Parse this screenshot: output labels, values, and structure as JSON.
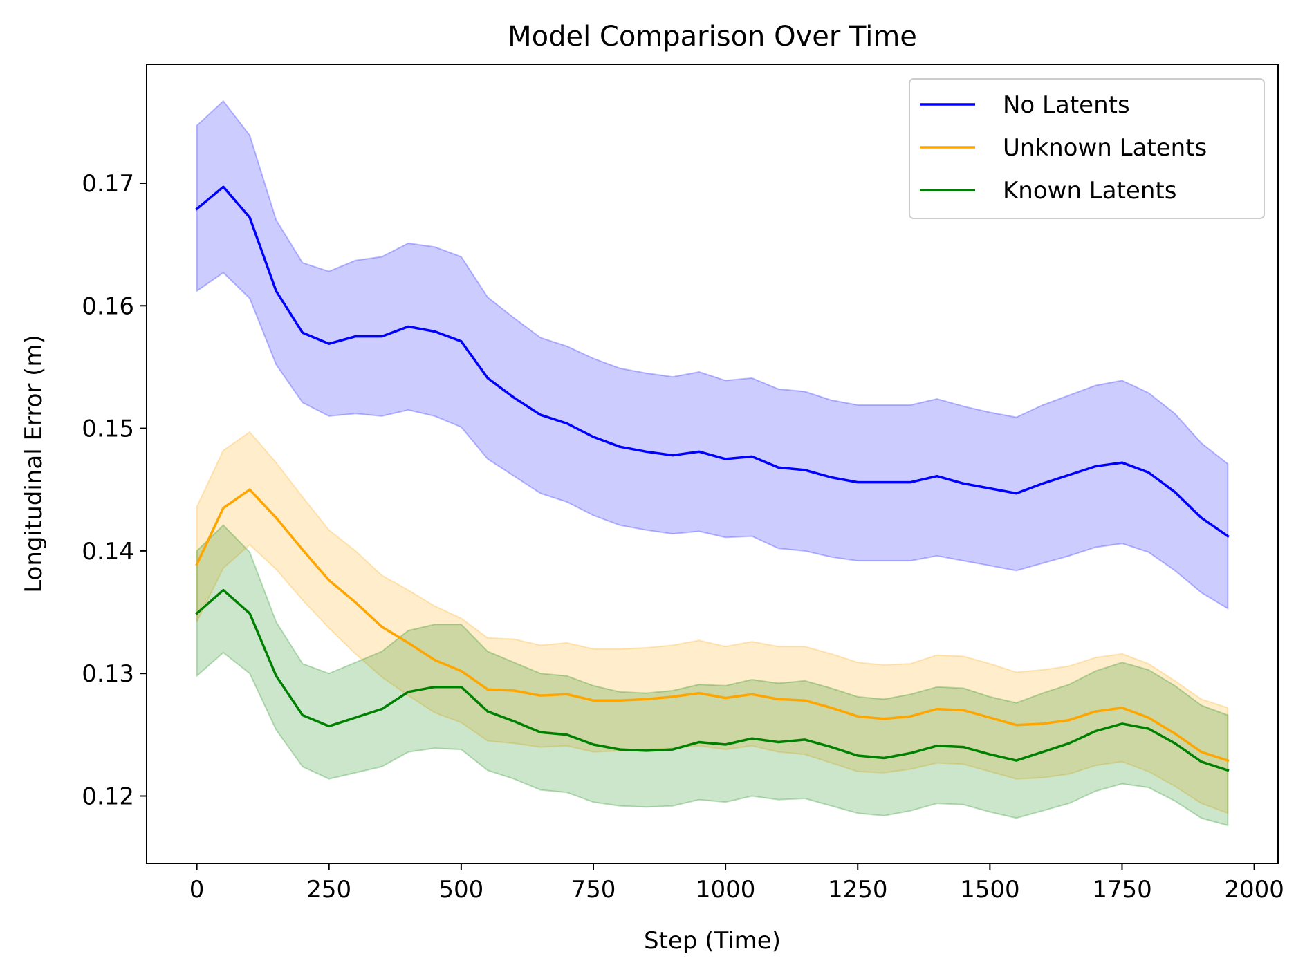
{
  "chart_data": {
    "type": "line",
    "title": "Model Comparison Over Time",
    "xlabel": "Step (Time)",
    "ylabel": "Longitudinal Error (m)",
    "xlim": [
      -95,
      2045
    ],
    "ylim": [
      0.1145,
      0.1797
    ],
    "xticks": [
      0,
      250,
      500,
      750,
      1000,
      1250,
      1500,
      1750,
      2000
    ],
    "xtick_labels": [
      "0",
      "250",
      "500",
      "750",
      "1000",
      "1250",
      "1500",
      "1750",
      "2000"
    ],
    "yticks": [
      0.12,
      0.13,
      0.14,
      0.15,
      0.16,
      0.17
    ],
    "ytick_labels": [
      "0.12",
      "0.13",
      "0.14",
      "0.15",
      "0.16",
      "0.17"
    ],
    "grid": false,
    "legend_position": "top-right",
    "x": [
      0,
      50,
      100,
      150,
      200,
      250,
      300,
      350,
      400,
      450,
      500,
      550,
      600,
      650,
      700,
      750,
      800,
      850,
      900,
      950,
      1000,
      1050,
      1100,
      1150,
      1200,
      1250,
      1300,
      1350,
      1400,
      1450,
      1500,
      1550,
      1600,
      1650,
      1700,
      1750,
      1800,
      1850,
      1900,
      1950
    ],
    "series": [
      {
        "name": "No Latents",
        "color": "#0000ff",
        "fill_opacity": 0.2,
        "values": [
          0.1679,
          0.1697,
          0.1672,
          0.1612,
          0.1578,
          0.1569,
          0.1575,
          0.1575,
          0.1583,
          0.1579,
          0.1571,
          0.1541,
          0.1525,
          0.1511,
          0.1504,
          0.1493,
          0.1485,
          0.1481,
          0.1478,
          0.1481,
          0.1475,
          0.1477,
          0.1468,
          0.1466,
          0.146,
          0.1456,
          0.1456,
          0.1456,
          0.1461,
          0.1455,
          0.1451,
          0.1447,
          0.1455,
          0.1462,
          0.1469,
          0.1472,
          0.1464,
          0.1448,
          0.1427,
          0.1412
        ],
        "lower": [
          0.1612,
          0.1627,
          0.1606,
          0.1552,
          0.1521,
          0.151,
          0.1512,
          0.151,
          0.1515,
          0.151,
          0.1501,
          0.1475,
          0.1461,
          0.1447,
          0.144,
          0.1429,
          0.1421,
          0.1417,
          0.1414,
          0.1416,
          0.1411,
          0.1412,
          0.1402,
          0.14,
          0.1395,
          0.1392,
          0.1392,
          0.1392,
          0.1396,
          0.1392,
          0.1388,
          0.1384,
          0.139,
          0.1396,
          0.1403,
          0.1406,
          0.1399,
          0.1384,
          0.1366,
          0.1353
        ],
        "upper": [
          0.1747,
          0.1767,
          0.1739,
          0.167,
          0.1635,
          0.1628,
          0.1637,
          0.164,
          0.1651,
          0.1648,
          0.164,
          0.1607,
          0.159,
          0.1574,
          0.1567,
          0.1557,
          0.1549,
          0.1545,
          0.1542,
          0.1546,
          0.1539,
          0.1541,
          0.1532,
          0.153,
          0.1523,
          0.1519,
          0.1519,
          0.1519,
          0.1524,
          0.1518,
          0.1513,
          0.1509,
          0.1519,
          0.1527,
          0.1535,
          0.1539,
          0.1529,
          0.1512,
          0.1488,
          0.1471
        ]
      },
      {
        "name": "Unknown Latents",
        "color": "#ffa500",
        "fill_opacity": 0.2,
        "values": [
          0.1389,
          0.1435,
          0.145,
          0.1427,
          0.1401,
          0.1376,
          0.1358,
          0.1338,
          0.1325,
          0.1311,
          0.1302,
          0.1287,
          0.1286,
          0.1282,
          0.1283,
          0.1278,
          0.1278,
          0.1279,
          0.1281,
          0.1284,
          0.128,
          0.1283,
          0.1279,
          0.1278,
          0.1272,
          0.1265,
          0.1263,
          0.1265,
          0.1271,
          0.127,
          0.1264,
          0.1258,
          0.1259,
          0.1262,
          0.1269,
          0.1272,
          0.1264,
          0.1251,
          0.1236,
          0.1229
        ],
        "lower": [
          0.1342,
          0.1386,
          0.1405,
          0.1385,
          0.136,
          0.1337,
          0.1316,
          0.1297,
          0.1282,
          0.1268,
          0.126,
          0.1245,
          0.1243,
          0.124,
          0.1241,
          0.1236,
          0.1237,
          0.1238,
          0.1239,
          0.1241,
          0.1238,
          0.1241,
          0.1236,
          0.1234,
          0.1227,
          0.122,
          0.1219,
          0.1222,
          0.1227,
          0.1226,
          0.122,
          0.1214,
          0.1215,
          0.1218,
          0.1225,
          0.1228,
          0.122,
          0.1208,
          0.1194,
          0.1186
        ],
        "upper": [
          0.1436,
          0.1482,
          0.1497,
          0.1472,
          0.1444,
          0.1417,
          0.14,
          0.138,
          0.1368,
          0.1355,
          0.1345,
          0.1329,
          0.1328,
          0.1323,
          0.1325,
          0.132,
          0.132,
          0.1321,
          0.1323,
          0.1327,
          0.1322,
          0.1326,
          0.1322,
          0.1322,
          0.1316,
          0.1309,
          0.1307,
          0.1308,
          0.1315,
          0.1314,
          0.1308,
          0.1301,
          0.1303,
          0.1306,
          0.1313,
          0.1316,
          0.1308,
          0.1294,
          0.1279,
          0.1272
        ]
      },
      {
        "name": "Known Latents",
        "color": "#008000",
        "fill_opacity": 0.2,
        "values": [
          0.1349,
          0.1368,
          0.1349,
          0.1298,
          0.1266,
          0.1257,
          0.1264,
          0.1271,
          0.1285,
          0.1289,
          0.1289,
          0.1269,
          0.1261,
          0.1252,
          0.125,
          0.1242,
          0.1238,
          0.1237,
          0.1238,
          0.1244,
          0.1242,
          0.1247,
          0.1244,
          0.1246,
          0.124,
          0.1233,
          0.1231,
          0.1235,
          0.1241,
          0.124,
          0.1234,
          0.1229,
          0.1236,
          0.1243,
          0.1253,
          0.1259,
          0.1255,
          0.1243,
          0.1228,
          0.1221
        ],
        "lower": [
          0.1298,
          0.1317,
          0.13,
          0.1254,
          0.1224,
          0.1214,
          0.1219,
          0.1224,
          0.1236,
          0.1239,
          0.1238,
          0.1221,
          0.1214,
          0.1205,
          0.1203,
          0.1195,
          0.1192,
          0.1191,
          0.1192,
          0.1197,
          0.1195,
          0.12,
          0.1197,
          0.1198,
          0.1192,
          0.1186,
          0.1184,
          0.1188,
          0.1194,
          0.1193,
          0.1187,
          0.1182,
          0.1188,
          0.1194,
          0.1204,
          0.121,
          0.1207,
          0.1196,
          0.1182,
          0.1176
        ],
        "upper": [
          0.14,
          0.1421,
          0.1399,
          0.1342,
          0.1308,
          0.13,
          0.1309,
          0.1318,
          0.1335,
          0.134,
          0.134,
          0.1318,
          0.1309,
          0.13,
          0.1298,
          0.129,
          0.1285,
          0.1284,
          0.1286,
          0.1291,
          0.129,
          0.1295,
          0.1292,
          0.1294,
          0.1288,
          0.1281,
          0.1279,
          0.1283,
          0.1289,
          0.1288,
          0.1281,
          0.1276,
          0.1284,
          0.1291,
          0.1302,
          0.1309,
          0.1303,
          0.129,
          0.1274,
          0.1266
        ]
      }
    ]
  }
}
